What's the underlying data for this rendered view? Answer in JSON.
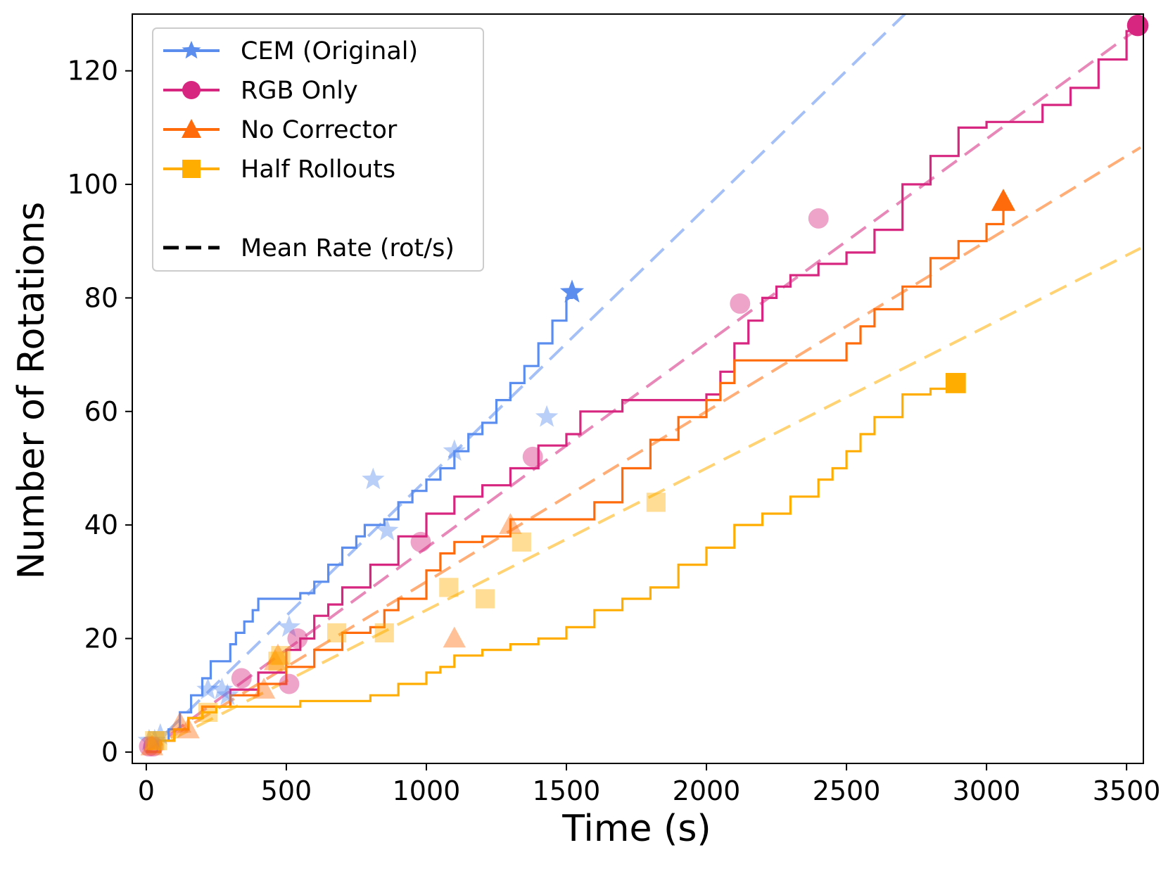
{
  "chart_data": {
    "type": "line",
    "title": "",
    "xlabel": "Time (s)",
    "ylabel": "Number of Rotations",
    "xlim": [
      -50,
      3560
    ],
    "ylim": [
      -2,
      130
    ],
    "xticks": [
      0,
      500,
      1000,
      1500,
      2000,
      2500,
      3000,
      3500
    ],
    "yticks": [
      0,
      20,
      40,
      60,
      80,
      100,
      120
    ],
    "legend": {
      "position": "top-left",
      "entries": [
        "CEM (Original)",
        "RGB Only",
        "No Corrector",
        "Half Rollouts",
        "Mean Rate (rot/s)"
      ]
    },
    "series": [
      {
        "name": "CEM (Original)",
        "color": "#5b8def",
        "marker": "star",
        "end_point": [
          1520,
          81
        ],
        "steps": [
          [
            0,
            0
          ],
          [
            40,
            2
          ],
          [
            80,
            4
          ],
          [
            120,
            7
          ],
          [
            160,
            10
          ],
          [
            200,
            13
          ],
          [
            230,
            16
          ],
          [
            260,
            16
          ],
          [
            300,
            19
          ],
          [
            320,
            21
          ],
          [
            350,
            23
          ],
          [
            380,
            25
          ],
          [
            400,
            27
          ],
          [
            500,
            27
          ],
          [
            550,
            28
          ],
          [
            600,
            30
          ],
          [
            650,
            33
          ],
          [
            700,
            36
          ],
          [
            750,
            38
          ],
          [
            780,
            40
          ],
          [
            850,
            41
          ],
          [
            900,
            44
          ],
          [
            950,
            46
          ],
          [
            1000,
            48
          ],
          [
            1050,
            50
          ],
          [
            1100,
            53
          ],
          [
            1150,
            56
          ],
          [
            1200,
            58
          ],
          [
            1250,
            62
          ],
          [
            1300,
            65
          ],
          [
            1350,
            68
          ],
          [
            1400,
            72
          ],
          [
            1450,
            76
          ],
          [
            1500,
            80
          ],
          [
            1520,
            81
          ]
        ],
        "mean_rate": 0.048,
        "scatter": [
          [
            10,
            2
          ],
          [
            30,
            2
          ],
          [
            50,
            3
          ],
          [
            220,
            11
          ],
          [
            270,
            11
          ],
          [
            290,
            10
          ],
          [
            510,
            22
          ],
          [
            810,
            48
          ],
          [
            860,
            39
          ],
          [
            1100,
            53
          ],
          [
            1430,
            59
          ]
        ]
      },
      {
        "name": "RGB Only",
        "color": "#d6267f",
        "marker": "circle",
        "end_point": [
          3540,
          128
        ],
        "steps": [
          [
            0,
            0
          ],
          [
            50,
            2
          ],
          [
            100,
            4
          ],
          [
            150,
            6
          ],
          [
            200,
            8
          ],
          [
            300,
            11
          ],
          [
            400,
            14
          ],
          [
            500,
            18
          ],
          [
            550,
            20
          ],
          [
            600,
            24
          ],
          [
            650,
            26
          ],
          [
            700,
            29
          ],
          [
            800,
            33
          ],
          [
            900,
            38
          ],
          [
            1000,
            42
          ],
          [
            1100,
            45
          ],
          [
            1200,
            47
          ],
          [
            1300,
            50
          ],
          [
            1400,
            54
          ],
          [
            1500,
            56
          ],
          [
            1550,
            60
          ],
          [
            1600,
            60
          ],
          [
            1700,
            62
          ],
          [
            1800,
            62
          ],
          [
            1900,
            62
          ],
          [
            2000,
            63
          ],
          [
            2050,
            67
          ],
          [
            2100,
            72
          ],
          [
            2150,
            76
          ],
          [
            2200,
            80
          ],
          [
            2250,
            82
          ],
          [
            2300,
            84
          ],
          [
            2400,
            86
          ],
          [
            2500,
            88
          ],
          [
            2600,
            92
          ],
          [
            2700,
            100
          ],
          [
            2800,
            105
          ],
          [
            2900,
            110
          ],
          [
            3000,
            111
          ],
          [
            3100,
            111
          ],
          [
            3200,
            114
          ],
          [
            3300,
            117
          ],
          [
            3400,
            122
          ],
          [
            3500,
            127
          ],
          [
            3540,
            128
          ]
        ],
        "mean_rate": 0.036,
        "scatter": [
          [
            10,
            1
          ],
          [
            25,
            1
          ],
          [
            340,
            13
          ],
          [
            510,
            12
          ],
          [
            540,
            20
          ],
          [
            980,
            37
          ],
          [
            1380,
            52
          ],
          [
            2120,
            79
          ],
          [
            2400,
            94
          ]
        ]
      },
      {
        "name": "No Corrector",
        "color": "#ff6b0a",
        "marker": "triangle",
        "end_point": [
          3060,
          97
        ],
        "steps": [
          [
            0,
            0
          ],
          [
            50,
            2
          ],
          [
            100,
            4
          ],
          [
            150,
            6
          ],
          [
            200,
            8
          ],
          [
            300,
            10
          ],
          [
            400,
            12
          ],
          [
            500,
            15
          ],
          [
            600,
            18
          ],
          [
            700,
            21
          ],
          [
            800,
            22
          ],
          [
            850,
            25
          ],
          [
            900,
            27
          ],
          [
            1000,
            32
          ],
          [
            1050,
            35
          ],
          [
            1100,
            37
          ],
          [
            1200,
            38
          ],
          [
            1300,
            41
          ],
          [
            1400,
            41
          ],
          [
            1500,
            41
          ],
          [
            1600,
            44
          ],
          [
            1700,
            50
          ],
          [
            1800,
            55
          ],
          [
            1900,
            59
          ],
          [
            2000,
            62
          ],
          [
            2050,
            65
          ],
          [
            2100,
            69
          ],
          [
            2200,
            69
          ],
          [
            2300,
            69
          ],
          [
            2400,
            69
          ],
          [
            2500,
            72
          ],
          [
            2550,
            75
          ],
          [
            2600,
            78
          ],
          [
            2700,
            82
          ],
          [
            2800,
            87
          ],
          [
            2900,
            90
          ],
          [
            3000,
            93
          ],
          [
            3060,
            97
          ]
        ],
        "mean_rate": 0.03,
        "scatter": [
          [
            20,
            1
          ],
          [
            120,
            5
          ],
          [
            150,
            4
          ],
          [
            420,
            11
          ],
          [
            460,
            16
          ],
          [
            470,
            17
          ],
          [
            1100,
            20
          ],
          [
            1300,
            40
          ]
        ]
      },
      {
        "name": "Half Rollouts",
        "color": "#ffae00",
        "marker": "square",
        "end_point": [
          2890,
          65
        ],
        "steps": [
          [
            0,
            0
          ],
          [
            50,
            2
          ],
          [
            100,
            4
          ],
          [
            150,
            6
          ],
          [
            200,
            7
          ],
          [
            250,
            8
          ],
          [
            300,
            8
          ],
          [
            400,
            8
          ],
          [
            500,
            8
          ],
          [
            550,
            9
          ],
          [
            700,
            9
          ],
          [
            800,
            10
          ],
          [
            900,
            12
          ],
          [
            1000,
            14
          ],
          [
            1050,
            15
          ],
          [
            1100,
            17
          ],
          [
            1200,
            18
          ],
          [
            1300,
            19
          ],
          [
            1400,
            20
          ],
          [
            1500,
            22
          ],
          [
            1600,
            25
          ],
          [
            1700,
            27
          ],
          [
            1800,
            29
          ],
          [
            1900,
            33
          ],
          [
            2000,
            36
          ],
          [
            2100,
            40
          ],
          [
            2200,
            42
          ],
          [
            2300,
            45
          ],
          [
            2400,
            48
          ],
          [
            2450,
            50
          ],
          [
            2500,
            53
          ],
          [
            2550,
            56
          ],
          [
            2600,
            59
          ],
          [
            2700,
            63
          ],
          [
            2800,
            64
          ],
          [
            2890,
            65
          ]
        ],
        "mean_rate": 0.025,
        "scatter": [
          [
            30,
            2
          ],
          [
            40,
            2
          ],
          [
            220,
            7
          ],
          [
            470,
            16
          ],
          [
            480,
            17
          ],
          [
            680,
            21
          ],
          [
            850,
            21
          ],
          [
            1080,
            29
          ],
          [
            1210,
            27
          ],
          [
            1340,
            37
          ],
          [
            1820,
            44
          ]
        ]
      }
    ]
  }
}
